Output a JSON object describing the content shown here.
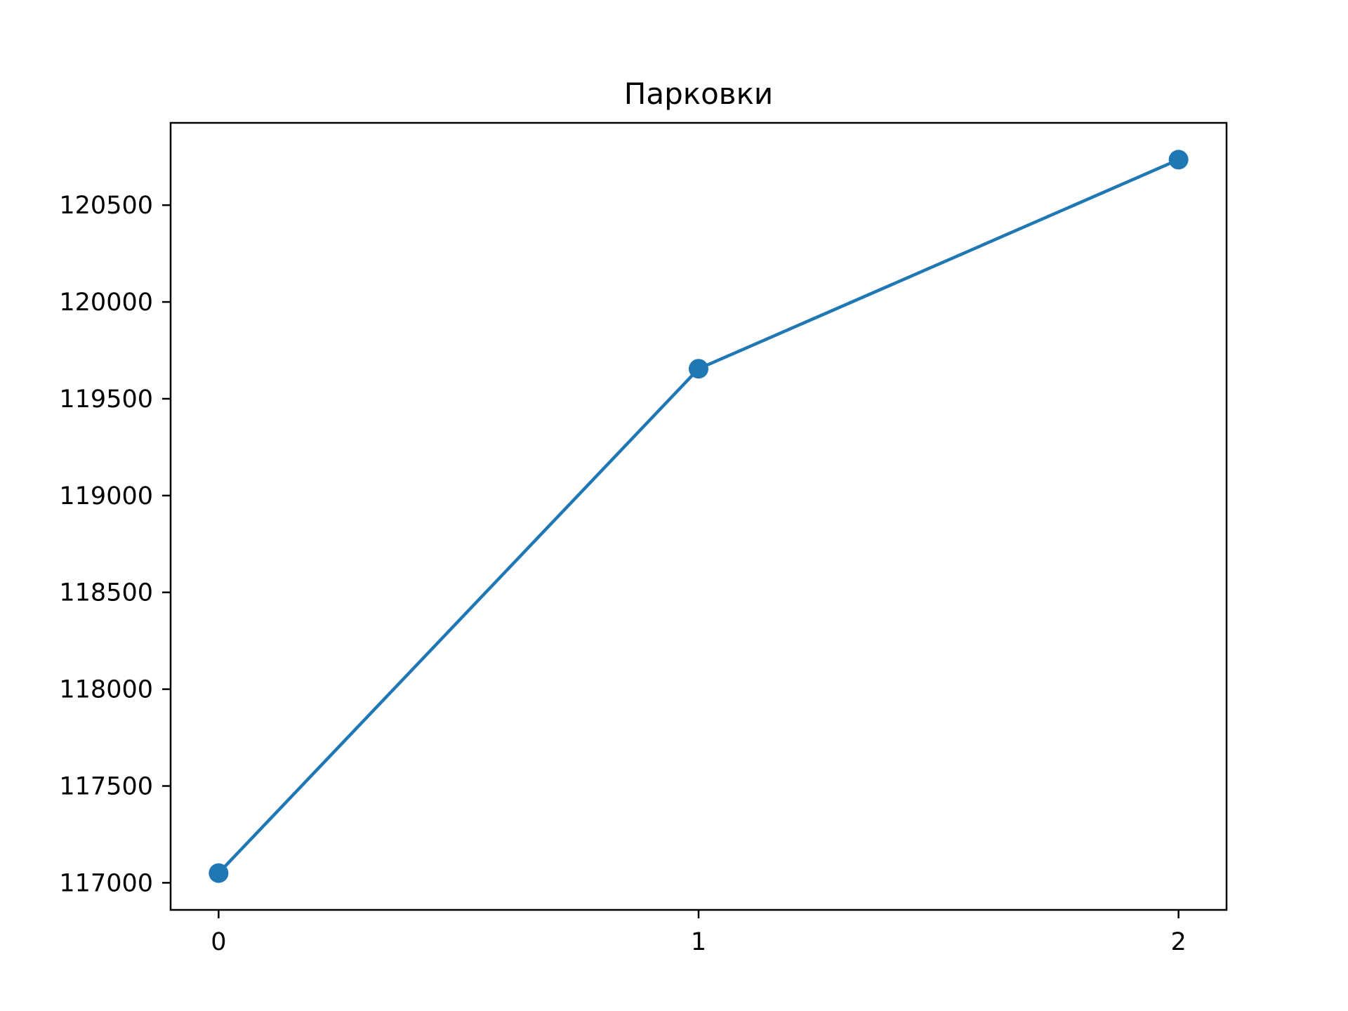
{
  "chart_data": {
    "type": "line",
    "title": "Парковки",
    "xlabel": "",
    "ylabel": "",
    "x": [
      0,
      1,
      2
    ],
    "x_tick_labels": [
      "0",
      "1",
      "2"
    ],
    "series": [
      {
        "values": [
          117050,
          119655,
          120735
        ],
        "marker": "circle"
      }
    ],
    "xlim": [
      -0.1,
      2.1
    ],
    "ylim": [
      116860,
      120925
    ],
    "y_ticks": [
      117000,
      117500,
      118000,
      118500,
      119000,
      119500,
      120000,
      120500
    ],
    "y_tick_labels": [
      "117000",
      "117500",
      "118000",
      "118500",
      "119000",
      "119500",
      "120000",
      "120500"
    ],
    "grid": false,
    "legend": "none",
    "colors": {
      "series": "#1f77b4",
      "axes": "#000000",
      "background": "#ffffff"
    }
  }
}
